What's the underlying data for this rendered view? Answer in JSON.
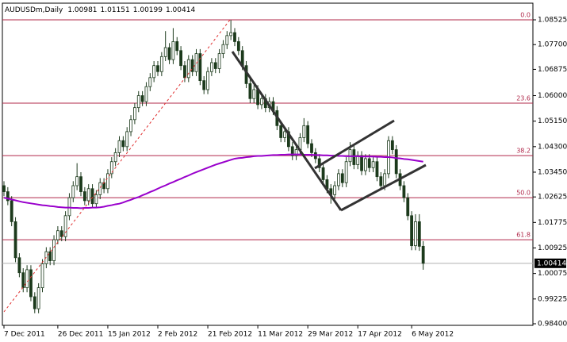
{
  "chart_data": {
    "type": "candlestick",
    "title": "AUDUSDm,Daily",
    "categories": [
      "7 Dec 2011",
      null,
      null,
      null,
      null,
      null,
      null,
      null,
      null,
      null,
      null,
      null,
      null,
      null,
      "26 Dec 2011",
      null,
      null,
      null,
      null,
      null,
      null,
      null,
      null,
      null,
      null,
      null,
      null,
      "15 Jan 2012",
      null,
      null,
      null,
      null,
      null,
      null,
      null,
      null,
      null,
      null,
      null,
      null,
      "2 Feb 2012",
      null,
      null,
      null,
      null,
      null,
      null,
      null,
      null,
      null,
      null,
      null,
      null,
      "21 Feb 2012",
      null,
      null,
      null,
      null,
      null,
      null,
      null,
      null,
      null,
      null,
      null,
      null,
      "11 Mar 2012",
      null,
      null,
      null,
      null,
      null,
      null,
      null,
      null,
      null,
      null,
      null,
      null,
      "29 Mar 2012",
      null,
      null,
      null,
      null,
      null,
      null,
      null,
      null,
      null,
      null,
      null,
      null,
      "17 Apr 2012",
      null,
      null,
      null,
      null,
      null,
      null,
      null,
      null,
      null,
      null,
      null,
      null,
      null,
      "6 May 2012",
      null,
      null,
      null
    ],
    "open": [
      1.03,
      1.028,
      1.025,
      1.018,
      1.006,
      1.001,
      0.996,
      1.002,
      0.993,
      0.989,
      0.996,
      1.004,
      1.008,
      1.005,
      1.012,
      1.015,
      1.013,
      1.02,
      1.026,
      1.03,
      1.033,
      1.028,
      1.025,
      1.029,
      1.024,
      1.027,
      1.031,
      1.029,
      1.034,
      1.038,
      1.041,
      1.045,
      1.043,
      1.048,
      1.052,
      1.056,
      1.06,
      1.058,
      1.063,
      1.066,
      1.07,
      1.068,
      1.073,
      1.076,
      1.072,
      1.078,
      1.075,
      1.07,
      1.066,
      1.072,
      1.068,
      1.074,
      1.065,
      1.062,
      1.068,
      1.071,
      1.069,
      1.074,
      1.077,
      1.08,
      1.081,
      1.078,
      1.075,
      1.07,
      1.064,
      1.059,
      1.062,
      1.057,
      1.059,
      1.056,
      1.058,
      1.055,
      1.05,
      1.046,
      1.048,
      1.043,
      1.04,
      1.042,
      1.046,
      1.05,
      1.044,
      1.041,
      1.039,
      1.036,
      1.032,
      1.029,
      1.027,
      1.03,
      1.034,
      1.031,
      1.038,
      1.042,
      1.037,
      1.04,
      1.035,
      1.039,
      1.036,
      1.038,
      1.033,
      1.03,
      1.034,
      1.045,
      1.042,
      1.034,
      1.03,
      1.026,
      1.02,
      1.01,
      1.018,
      1.00981
    ],
    "high": [
      1.0315,
      1.0295,
      1.0265,
      1.0195,
      1.0075,
      1.0025,
      1.0035,
      1.0035,
      0.9945,
      0.9975,
      1.0055,
      1.0095,
      1.0095,
      1.0135,
      1.0165,
      1.0165,
      1.0215,
      1.0275,
      1.0315,
      1.0375,
      1.0345,
      1.0295,
      1.0305,
      1.0305,
      1.0285,
      1.0325,
      1.0325,
      1.0355,
      1.0395,
      1.0425,
      1.0465,
      1.0465,
      1.0495,
      1.0535,
      1.0575,
      1.0615,
      1.0615,
      1.0645,
      1.0675,
      1.0715,
      1.0715,
      1.0745,
      1.0815,
      1.0775,
      1.0825,
      1.0795,
      1.0765,
      1.0715,
      1.0735,
      1.0735,
      1.0755,
      1.0755,
      1.0665,
      1.0695,
      1.0725,
      1.0725,
      1.0755,
      1.0785,
      1.0815,
      1.0852,
      1.0825,
      1.0795,
      1.0765,
      1.0715,
      1.0655,
      1.0635,
      1.0635,
      1.0605,
      1.0605,
      1.0595,
      1.0595,
      1.0565,
      1.0515,
      1.0495,
      1.0495,
      1.0445,
      1.0435,
      1.0475,
      1.0525,
      1.0515,
      1.0455,
      1.0425,
      1.0405,
      1.0375,
      1.0335,
      1.0305,
      1.0315,
      1.0355,
      1.0355,
      1.0395,
      1.0445,
      1.0435,
      1.0415,
      1.0415,
      1.0405,
      1.0405,
      1.0395,
      1.0395,
      1.0345,
      1.0355,
      1.0465,
      1.0465,
      1.0435,
      1.0355,
      1.0315,
      1.0275,
      1.0215,
      1.0205,
      1.0205,
      1.01151
    ],
    "low": [
      1.0265,
      1.0235,
      1.0165,
      1.0045,
      0.9995,
      0.9945,
      0.9945,
      0.9915,
      0.9875,
      0.9875,
      0.9945,
      1.0025,
      1.0035,
      1.0035,
      1.0105,
      1.0115,
      1.0115,
      1.0185,
      1.0245,
      1.0285,
      1.0265,
      1.0235,
      1.0235,
      1.0225,
      1.0225,
      1.0255,
      1.0275,
      1.0275,
      1.0325,
      1.0365,
      1.0395,
      1.0415,
      1.0415,
      1.0465,
      1.0505,
      1.0545,
      1.0565,
      1.0565,
      1.0615,
      1.0645,
      1.0665,
      1.0665,
      1.0715,
      1.0705,
      1.0705,
      1.0735,
      1.0685,
      1.0645,
      1.0645,
      1.0665,
      1.0665,
      1.0635,
      1.0605,
      1.0605,
      1.0665,
      1.0675,
      1.0675,
      1.0725,
      1.0755,
      1.0785,
      1.0765,
      1.0735,
      1.0685,
      1.0625,
      1.0575,
      1.0575,
      1.0555,
      1.0555,
      1.0545,
      1.0545,
      1.0535,
      1.0485,
      1.0445,
      1.0445,
      1.0415,
      1.0385,
      1.0385,
      1.0405,
      1.0445,
      1.0425,
      1.0395,
      1.0375,
      1.0345,
      1.0305,
      1.0275,
      1.024,
      1.0255,
      1.0285,
      1.0295,
      1.0295,
      1.0365,
      1.0355,
      1.0355,
      1.0335,
      1.0335,
      1.0345,
      1.0345,
      1.0315,
      1.0285,
      1.0285,
      1.0325,
      1.0405,
      1.0325,
      1.0285,
      1.0245,
      1.0185,
      1.0085,
      1.0085,
      1.0083,
      1.00199
    ],
    "close": [
      1.028,
      1.025,
      1.018,
      1.006,
      1.001,
      0.996,
      1.002,
      0.993,
      0.989,
      0.996,
      1.004,
      1.008,
      1.005,
      1.012,
      1.015,
      1.013,
      1.02,
      1.026,
      1.03,
      1.033,
      1.028,
      1.025,
      1.029,
      1.024,
      1.027,
      1.031,
      1.029,
      1.034,
      1.038,
      1.041,
      1.045,
      1.043,
      1.048,
      1.052,
      1.056,
      1.06,
      1.058,
      1.063,
      1.066,
      1.07,
      1.068,
      1.073,
      1.076,
      1.072,
      1.078,
      1.075,
      1.07,
      1.066,
      1.072,
      1.068,
      1.074,
      1.065,
      1.062,
      1.068,
      1.071,
      1.069,
      1.074,
      1.077,
      1.08,
      1.081,
      1.078,
      1.075,
      1.07,
      1.064,
      1.059,
      1.062,
      1.057,
      1.059,
      1.056,
      1.058,
      1.055,
      1.05,
      1.046,
      1.048,
      1.043,
      1.04,
      1.042,
      1.046,
      1.05,
      1.044,
      1.041,
      1.039,
      1.036,
      1.032,
      1.029,
      1.027,
      1.03,
      1.034,
      1.031,
      1.038,
      1.042,
      1.037,
      1.04,
      1.035,
      1.039,
      1.036,
      1.038,
      1.033,
      1.03,
      1.034,
      1.045,
      1.042,
      1.034,
      1.03,
      1.026,
      1.02,
      1.01,
      1.018,
      1.0098,
      1.00414
    ],
    "up_color": "#ffffff",
    "down_color": "#1c3a1c",
    "candle_outline": "#1c3a1c",
    "moving_average": {
      "color": "#9900cc",
      "values": [
        1.026,
        1.0257,
        1.0254,
        1.0251,
        1.0248,
        1.0245,
        1.0243,
        1.0241,
        1.0239,
        1.0237,
        1.0235,
        1.0234,
        1.0232,
        1.0231,
        1.0229,
        1.0228,
        1.0227,
        1.0227,
        1.0226,
        1.0226,
        1.0225,
        1.0226,
        1.0226,
        1.0227,
        1.0227,
        1.0228,
        1.023,
        1.0233,
        1.0235,
        1.0238,
        1.024,
        1.0244,
        1.0249,
        1.0253,
        1.0258,
        1.0262,
        1.0268,
        1.0273,
        1.0279,
        1.0284,
        1.029,
        1.0296,
        1.0301,
        1.0307,
        1.0312,
        1.0318,
        1.0323,
        1.0329,
        1.0334,
        1.034,
        1.0345,
        1.035,
        1.0355,
        1.036,
        1.0365,
        1.037,
        1.0374,
        1.0378,
        1.0382,
        1.0386,
        1.039,
        1.0392,
        1.0393,
        1.0395,
        1.0396,
        1.0398,
        1.0399,
        1.0399,
        1.04,
        1.0401,
        1.0402,
        1.0402,
        1.0403,
        1.0403,
        1.0404,
        1.0404,
        1.0404,
        1.0404,
        1.0403,
        1.0403,
        1.0403,
        1.0402,
        1.0402,
        1.0401,
        1.0401,
        1.04,
        1.04,
        1.0399,
        1.0399,
        1.0398,
        1.0398,
        1.0398,
        1.0398,
        1.0397,
        1.0397,
        1.0397,
        1.0397,
        1.0396,
        1.0396,
        1.0395,
        1.0395,
        1.0394,
        1.0392,
        1.0391,
        1.0389,
        1.0388,
        1.0386,
        1.0384,
        1.0382,
        1.038
      ]
    },
    "fib_color": "#b0284a",
    "fib_levels": [
      {
        "name": "0.0",
        "price": 1.08525
      },
      {
        "name": "23.6",
        "price": 1.0575
      },
      {
        "name": "38.2",
        "price": 1.04
      },
      {
        "name": "50.0",
        "price": 1.026
      },
      {
        "name": "61.8",
        "price": 1.012
      }
    ],
    "last_price": 1.00414,
    "ylim": [
      0.98347,
      1.09054
    ],
    "yticks": [
      1.08525,
      {
        "value": 1.077,
        "label": "1.07700"
      },
      1.06875,
      {
        "value": 1.06,
        "label": "1.06000"
      },
      {
        "value": 1.0515,
        "label": "1.05150"
      },
      {
        "value": 1.043,
        "label": "1.04300"
      },
      {
        "value": 1.0345,
        "label": "1.03450"
      },
      1.02625,
      1.01775,
      1.00925,
      1.00075,
      0.99225,
      {
        "value": 0.984,
        "label": "0.98400"
      }
    ]
  }
}
